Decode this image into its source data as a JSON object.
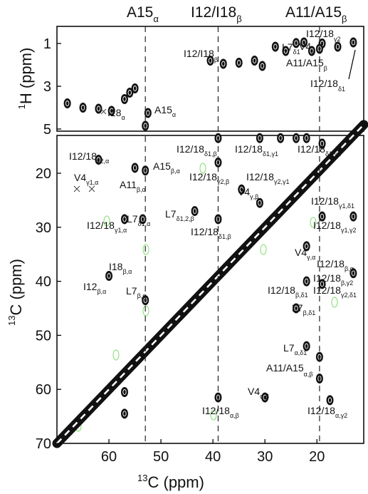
{
  "chart_data": {
    "type": "scatter",
    "x_axis": {
      "label_main": "C (ppm)",
      "label_sup": "13",
      "reversed": true,
      "xlim": [
        70,
        11
      ],
      "ticks": [
        60,
        50,
        40,
        30,
        20
      ]
    },
    "top_panel": {
      "y_axis": {
        "label_main": "H (ppm)",
        "label_sup": "1",
        "reversed": true,
        "ylim": [
          0.2,
          5.1
        ],
        "ticks": [
          1,
          3,
          5
        ]
      },
      "peaks": [
        {
          "x": 13.0,
          "y": 0.95
        },
        {
          "x": 16.0,
          "y": 1.15
        },
        {
          "x": 19.0,
          "y": 1.0
        },
        {
          "x": 19.5,
          "y": 1.25
        },
        {
          "x": 21.0,
          "y": 1.35
        },
        {
          "x": 22.5,
          "y": 0.95
        },
        {
          "x": 24.0,
          "y": 0.98
        },
        {
          "x": 26.0,
          "y": 1.35
        },
        {
          "x": 28.0,
          "y": 1.15
        },
        {
          "x": 30.5,
          "y": 2.05
        },
        {
          "x": 32.0,
          "y": 1.8
        },
        {
          "x": 35.0,
          "y": 1.9
        },
        {
          "x": 38.0,
          "y": 1.95
        },
        {
          "x": 40.5,
          "y": 1.8
        },
        {
          "x": 52.5,
          "y": 4.25
        },
        {
          "x": 55.0,
          "y": 3.1
        },
        {
          "x": 56.0,
          "y": 3.3
        },
        {
          "x": 57.0,
          "y": 3.6
        },
        {
          "x": 59.5,
          "y": 4.15
        },
        {
          "x": 62.0,
          "y": 4.05
        },
        {
          "x": 65.0,
          "y": 4.0
        },
        {
          "x": 68.0,
          "y": 3.8
        },
        {
          "x": 53.0,
          "y": 4.85
        }
      ]
    },
    "bottom_panel": {
      "y_axis": {
        "label_main": "C (ppm)",
        "label_sup": "13",
        "reversed": true,
        "ylim": [
          13,
          70
        ],
        "ticks": [
          20,
          30,
          40,
          50,
          60,
          70
        ]
      },
      "diagonal": {
        "x": [
          70,
          11
        ],
        "y": [
          70,
          11
        ]
      },
      "peaks": [
        {
          "x": 62.0,
          "y": 17.5
        },
        {
          "x": 55.0,
          "y": 19.0
        },
        {
          "x": 53.0,
          "y": 19.5
        },
        {
          "x": 39.0,
          "y": 13.5
        },
        {
          "x": 39.0,
          "y": 18.0
        },
        {
          "x": 34.5,
          "y": 23.0
        },
        {
          "x": 31.0,
          "y": 13.5
        },
        {
          "x": 27.0,
          "y": 13.5
        },
        {
          "x": 24.0,
          "y": 13.5
        },
        {
          "x": 22.0,
          "y": 13.5
        },
        {
          "x": 19.0,
          "y": 14.5
        },
        {
          "x": 57.0,
          "y": 28.5
        },
        {
          "x": 53.5,
          "y": 28.5
        },
        {
          "x": 43.5,
          "y": 27.0
        },
        {
          "x": 39.0,
          "y": 28.5
        },
        {
          "x": 31.0,
          "y": 25.5
        },
        {
          "x": 19.0,
          "y": 28.0
        },
        {
          "x": 13.0,
          "y": 28.0
        },
        {
          "x": 22.0,
          "y": 33.5
        },
        {
          "x": 22.0,
          "y": 40.0
        },
        {
          "x": 19.0,
          "y": 40.5
        },
        {
          "x": 13.0,
          "y": 38.5
        },
        {
          "x": 60.0,
          "y": 39.0
        },
        {
          "x": 53.0,
          "y": 43.5
        },
        {
          "x": 24.0,
          "y": 45.0
        },
        {
          "x": 22.0,
          "y": 52.0
        },
        {
          "x": 19.5,
          "y": 54.0
        },
        {
          "x": 19.5,
          "y": 58.0
        },
        {
          "x": 39.0,
          "y": 61.5
        },
        {
          "x": 30.0,
          "y": 61.5
        },
        {
          "x": 17.5,
          "y": 62.0
        },
        {
          "x": 57.0,
          "y": 60.5
        },
        {
          "x": 57.0,
          "y": 64.5
        }
      ]
    },
    "dashed_lines_x": [
      53,
      39,
      19.5
    ]
  },
  "labels": {
    "top_col": {
      "a15": {
        "main": "A15",
        "sub": "α"
      },
      "i12i18": {
        "main": "I12/I18",
        "sub": "β"
      },
      "a11a15": {
        "main": "A11/A15",
        "sub": "β"
      }
    },
    "top": {
      "i18": {
        "main": "I18",
        "sub": "α"
      },
      "a15": {
        "main": "A15",
        "sub": "α"
      },
      "i12i18b": {
        "main": "I12/I18",
        "sub": "β"
      },
      "l7": {
        "main": "L7",
        "sub": "δ1"
      },
      "v4": {
        "main": "V4",
        "sub": "γ"
      },
      "i1218g2": {
        "main": "I12/18",
        "sub": "γ2"
      },
      "a11a15b": {
        "main": "A11/A15",
        "sub": "β"
      },
      "i1218d1": {
        "main": "I12/18",
        "sub": "δ1"
      }
    },
    "bottom": {
      "i1218ga": {
        "main": "I12/18",
        "sub": "γ2,α"
      },
      "v4": {
        "main": "V4",
        "sub": "γ1,α"
      },
      "a15ba": {
        "main": "A15",
        "sub": "β,α"
      },
      "a11ba": {
        "main": "A11",
        "sub": "β,α"
      },
      "l7d1a": {
        "main": "L7",
        "sub": "δ1,α"
      },
      "i1218g1a": {
        "main": "I12/18",
        "sub": "γ1,α"
      },
      "i18ba": {
        "main": "I18",
        "sub": "β,α"
      },
      "i12ba": {
        "main": "I12",
        "sub": "β,α"
      },
      "l7ba": {
        "main": "L7",
        "sub": "β,α"
      },
      "i1218d1b_top": {
        "main": "I12/18",
        "sub": "δ1,β"
      },
      "i1218g2b": {
        "main": "I12/18",
        "sub": "γ2,β"
      },
      "i1218d1g1": {
        "main": "I12/18",
        "sub": "δ1,γ1"
      },
      "i1218d1g2": {
        "main": "I12/18",
        "sub": "δ1,γ2"
      },
      "i1218g2g1": {
        "main": "I12/18",
        "sub": "γ2,γ1"
      },
      "v4gb": {
        "main": "V4",
        "sub": "γ,β"
      },
      "l7d12b": {
        "main": "L7",
        "sub": "δ1,2,β"
      },
      "i1218d1b": {
        "main": "I12/18",
        "sub": "δ1,β"
      },
      "i1218g1d1": {
        "main": "I12/18",
        "sub": "γ1,δ1"
      },
      "i1218g1g2": {
        "main": "I12/18",
        "sub": "γ1,γ2"
      },
      "v4ga": {
        "main": "V4",
        "sub": "γ,α"
      },
      "i1218ba": {
        "main": "I12/18",
        "sub": "β,α"
      },
      "i1218bd1": {
        "main": "I12/18",
        "sub": "β,δ1"
      },
      "i1218g2d1": {
        "main": "I12/18",
        "sub": "γ2,δ1"
      },
      "i1218bg2": {
        "main": "I12/18",
        "sub": "β,γ2"
      },
      "l7bd1": {
        "main": "L7",
        "sub": "β,δ1"
      },
      "l7ad1": {
        "main": "L7",
        "sub": "α,δ1"
      },
      "a11a15ab": {
        "main": "A11/A15",
        "sub": "α,β"
      },
      "v4ab": {
        "main": "V4",
        "sub": "α,β"
      },
      "i1218ab": {
        "main": "I12/18",
        "sub": "α,β"
      },
      "i1218ag2": {
        "main": "I12/18",
        "sub": "α,γ2"
      }
    }
  },
  "colors": {
    "contour": "#111111",
    "noise": "#7ddc6a",
    "axis": "#000000"
  }
}
